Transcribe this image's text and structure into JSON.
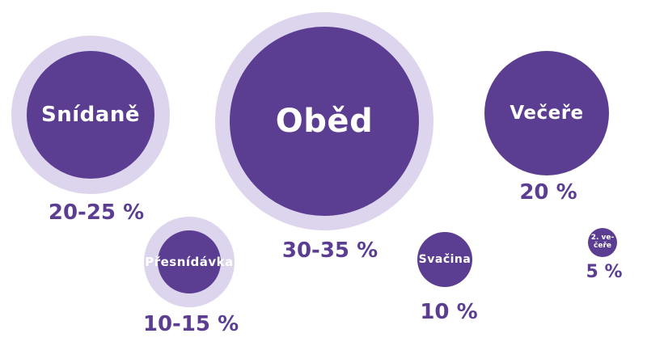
{
  "page": {
    "background": "#ffffff"
  },
  "colors": {
    "page_background": "#ffffff",
    "bubble_fill": "#5b3e91",
    "bubble_ring": "#ddd5ee",
    "bubble_label": "#ffffff",
    "percent_label": "#5b3e91"
  },
  "chart_data": {
    "type": "bubble",
    "legend": "none",
    "axes": "none",
    "items": [
      {
        "label": "Snídaně",
        "percent_label": "20-25 %",
        "min_percent": 20,
        "max_percent": 25,
        "ring": true
      },
      {
        "label": "Oběd",
        "percent_label": "30-35 %",
        "min_percent": 30,
        "max_percent": 35,
        "ring": true
      },
      {
        "label": "Večeře",
        "percent_label": "20 %",
        "min_percent": 20,
        "max_percent": 20,
        "ring": false
      },
      {
        "label": "Přesnídávka",
        "percent_label": "10-15 %",
        "min_percent": 10,
        "max_percent": 15,
        "ring": true
      },
      {
        "label": "Svačina",
        "percent_label": "10 %",
        "min_percent": 10,
        "max_percent": 10,
        "ring": false
      },
      {
        "label": "2. večeře",
        "label_lines": [
          "2. ve-",
          "čeře"
        ],
        "percent_label": "5 %",
        "min_percent": 5,
        "max_percent": 5,
        "ring": false
      }
    ]
  }
}
